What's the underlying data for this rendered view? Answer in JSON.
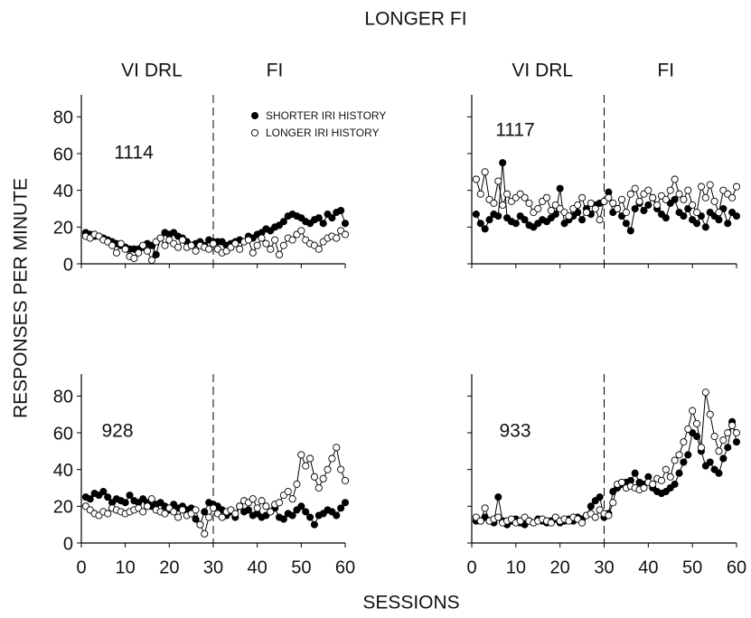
{
  "title": "LONGER FI",
  "y_label": "RESPONSES PER MINUTE",
  "x_label": "SESSIONS",
  "chart_data": [
    {
      "type": "line",
      "subject": "1114",
      "phases": [
        "VI DRL",
        "FI"
      ],
      "phase_change": 30,
      "legend": "top-center",
      "xlim": [
        0,
        60
      ],
      "ylim": [
        0,
        90
      ],
      "xticks": [
        0,
        10,
        20,
        30,
        40,
        50,
        60
      ],
      "yticks": [
        0,
        20,
        40,
        60,
        80
      ],
      "show_xtick_labels": false,
      "show_ytick_labels": true,
      "x": [
        1,
        2,
        3,
        4,
        5,
        6,
        7,
        8,
        9,
        10,
        11,
        12,
        13,
        14,
        15,
        16,
        17,
        18,
        19,
        20,
        21,
        22,
        23,
        24,
        25,
        26,
        27,
        28,
        29,
        30,
        31,
        32,
        33,
        34,
        35,
        36,
        37,
        38,
        39,
        40,
        41,
        42,
        43,
        44,
        45,
        46,
        47,
        48,
        49,
        50,
        51,
        52,
        53,
        54,
        55,
        56,
        57,
        58,
        59,
        60
      ],
      "series": [
        {
          "name": "SHORTER IRI HISTORY",
          "color": "#000000",
          "marker_fill": "#000000",
          "values": [
            17,
            16,
            15,
            15,
            14,
            13,
            12,
            11,
            10,
            9,
            8,
            8,
            8,
            9,
            11,
            10,
            5,
            14,
            17,
            16,
            17,
            15,
            14,
            12,
            10,
            11,
            12,
            10,
            13,
            12,
            12,
            12,
            10,
            11,
            12,
            13,
            12,
            15,
            14,
            16,
            17,
            19,
            18,
            20,
            21,
            23,
            26,
            27,
            26,
            25,
            23,
            22,
            24,
            25,
            22,
            27,
            25,
            28,
            29,
            22
          ]
        },
        {
          "name": "LONGER IRI HISTORY",
          "color": "#000000",
          "marker_fill": "#ffffff",
          "values": [
            15,
            14,
            16,
            15,
            13,
            12,
            10,
            6,
            11,
            8,
            4,
            3,
            6,
            10,
            7,
            2,
            12,
            14,
            10,
            13,
            11,
            9,
            13,
            9,
            10,
            7,
            10,
            9,
            8,
            11,
            8,
            6,
            7,
            9,
            11,
            8,
            12,
            13,
            6,
            10,
            14,
            11,
            8,
            13,
            5,
            10,
            14,
            13,
            16,
            18,
            13,
            11,
            10,
            8,
            12,
            14,
            15,
            14,
            18,
            16
          ]
        }
      ]
    },
    {
      "type": "line",
      "subject": "1117",
      "phases": [
        "VI DRL",
        "FI"
      ],
      "phase_change": 30,
      "xlim": [
        0,
        60
      ],
      "ylim": [
        0,
        90
      ],
      "xticks": [
        0,
        10,
        20,
        30,
        40,
        50,
        60
      ],
      "yticks": [
        0,
        20,
        40,
        60,
        80
      ],
      "show_xtick_labels": false,
      "show_ytick_labels": false,
      "x": [
        1,
        2,
        3,
        4,
        5,
        6,
        7,
        8,
        9,
        10,
        11,
        12,
        13,
        14,
        15,
        16,
        17,
        18,
        19,
        20,
        21,
        22,
        23,
        24,
        25,
        26,
        27,
        28,
        29,
        30,
        31,
        32,
        33,
        34,
        35,
        36,
        37,
        38,
        39,
        40,
        41,
        42,
        43,
        44,
        45,
        46,
        47,
        48,
        49,
        50,
        51,
        52,
        53,
        54,
        55,
        56,
        57,
        58,
        59,
        60
      ],
      "series": [
        {
          "color": "#000000",
          "marker_fill": "#000000",
          "values": [
            27,
            22,
            19,
            24,
            27,
            26,
            55,
            25,
            23,
            22,
            26,
            24,
            21,
            20,
            22,
            24,
            23,
            25,
            27,
            41,
            22,
            24,
            26,
            28,
            24,
            30,
            27,
            32,
            33,
            34,
            39,
            28,
            30,
            26,
            22,
            18,
            30,
            33,
            29,
            32,
            36,
            30,
            27,
            25,
            33,
            35,
            28,
            26,
            30,
            24,
            22,
            26,
            20,
            28,
            26,
            24,
            30,
            22,
            28,
            26
          ]
        },
        {
          "color": "#000000",
          "marker_fill": "#ffffff",
          "values": [
            46,
            38,
            50,
            35,
            33,
            45,
            32,
            38,
            34,
            36,
            38,
            36,
            33,
            28,
            30,
            34,
            36,
            29,
            32,
            30,
            28,
            26,
            30,
            32,
            36,
            28,
            33,
            30,
            24,
            34,
            36,
            33,
            30,
            35,
            28,
            38,
            41,
            34,
            38,
            40,
            36,
            32,
            37,
            35,
            40,
            46,
            38,
            35,
            40,
            32,
            28,
            42,
            36,
            43,
            34,
            28,
            40,
            38,
            36,
            42
          ]
        }
      ]
    },
    {
      "type": "line",
      "subject": "928",
      "phase_change": 30,
      "xlim": [
        0,
        60
      ],
      "ylim": [
        0,
        90
      ],
      "xticks": [
        0,
        10,
        20,
        30,
        40,
        50,
        60
      ],
      "yticks": [
        0,
        20,
        40,
        60,
        80
      ],
      "show_xtick_labels": true,
      "show_ytick_labels": true,
      "x": [
        1,
        2,
        3,
        4,
        5,
        6,
        7,
        8,
        9,
        10,
        11,
        12,
        13,
        14,
        15,
        16,
        17,
        18,
        19,
        20,
        21,
        22,
        23,
        24,
        25,
        26,
        27,
        28,
        29,
        30,
        31,
        32,
        33,
        34,
        35,
        36,
        37,
        38,
        39,
        40,
        41,
        42,
        43,
        44,
        45,
        46,
        47,
        48,
        49,
        50,
        51,
        52,
        53,
        54,
        55,
        56,
        57,
        58,
        59,
        60
      ],
      "series": [
        {
          "color": "#000000",
          "marker_fill": "#000000",
          "values": [
            25,
            24,
            27,
            26,
            28,
            25,
            22,
            24,
            23,
            22,
            26,
            23,
            22,
            24,
            22,
            20,
            21,
            22,
            20,
            18,
            21,
            19,
            20,
            18,
            19,
            13,
            10,
            17,
            22,
            21,
            20,
            18,
            15,
            17,
            14,
            20,
            17,
            18,
            15,
            16,
            14,
            15,
            17,
            19,
            14,
            13,
            16,
            15,
            18,
            20,
            17,
            14,
            10,
            15,
            16,
            18,
            17,
            15,
            19,
            22
          ]
        },
        {
          "color": "#000000",
          "marker_fill": "#ffffff",
          "values": [
            20,
            18,
            16,
            15,
            17,
            16,
            19,
            18,
            17,
            16,
            17,
            18,
            19,
            17,
            20,
            24,
            18,
            17,
            16,
            19,
            17,
            14,
            18,
            15,
            16,
            18,
            10,
            5,
            14,
            19,
            16,
            14,
            17,
            18,
            16,
            20,
            23,
            22,
            24,
            19,
            23,
            20,
            17,
            21,
            22,
            26,
            28,
            24,
            32,
            48,
            42,
            46,
            36,
            30,
            35,
            40,
            46,
            52,
            40,
            34
          ]
        }
      ]
    },
    {
      "type": "line",
      "subject": "933",
      "phase_change": 30,
      "xlim": [
        0,
        60
      ],
      "ylim": [
        0,
        90
      ],
      "xticks": [
        0,
        10,
        20,
        30,
        40,
        50,
        60
      ],
      "yticks": [
        0,
        20,
        40,
        60,
        80
      ],
      "show_xtick_labels": true,
      "show_ytick_labels": false,
      "x": [
        1,
        2,
        3,
        4,
        5,
        6,
        7,
        8,
        9,
        10,
        11,
        12,
        13,
        14,
        15,
        16,
        17,
        18,
        19,
        20,
        21,
        22,
        23,
        24,
        25,
        26,
        27,
        28,
        29,
        30,
        31,
        32,
        33,
        34,
        35,
        36,
        37,
        38,
        39,
        40,
        41,
        42,
        43,
        44,
        45,
        46,
        47,
        48,
        49,
        50,
        51,
        52,
        53,
        54,
        55,
        56,
        57,
        58,
        59,
        60
      ],
      "series": [
        {
          "color": "#000000",
          "marker_fill": "#000000",
          "values": [
            12,
            12,
            14,
            12,
            11,
            25,
            12,
            10,
            12,
            13,
            11,
            10,
            12,
            11,
            13,
            12,
            11,
            12,
            13,
            11,
            12,
            13,
            12,
            14,
            13,
            15,
            20,
            23,
            25,
            14,
            16,
            28,
            30,
            32,
            33,
            34,
            38,
            33,
            32,
            36,
            30,
            28,
            27,
            28,
            30,
            32,
            38,
            44,
            48,
            60,
            58,
            50,
            42,
            44,
            40,
            38,
            46,
            52,
            66,
            55
          ]
        },
        {
          "color": "#000000",
          "marker_fill": "#ffffff",
          "values": [
            14,
            12,
            19,
            12,
            13,
            14,
            11,
            12,
            13,
            11,
            12,
            14,
            12,
            11,
            12,
            13,
            12,
            11,
            14,
            12,
            13,
            12,
            14,
            13,
            11,
            15,
            16,
            14,
            18,
            16,
            15,
            22,
            32,
            33,
            30,
            31,
            30,
            29,
            30,
            33,
            32,
            35,
            34,
            40,
            36,
            45,
            48,
            55,
            62,
            72,
            65,
            52,
            82,
            70,
            58,
            50,
            56,
            60,
            64,
            60
          ]
        }
      ]
    }
  ]
}
